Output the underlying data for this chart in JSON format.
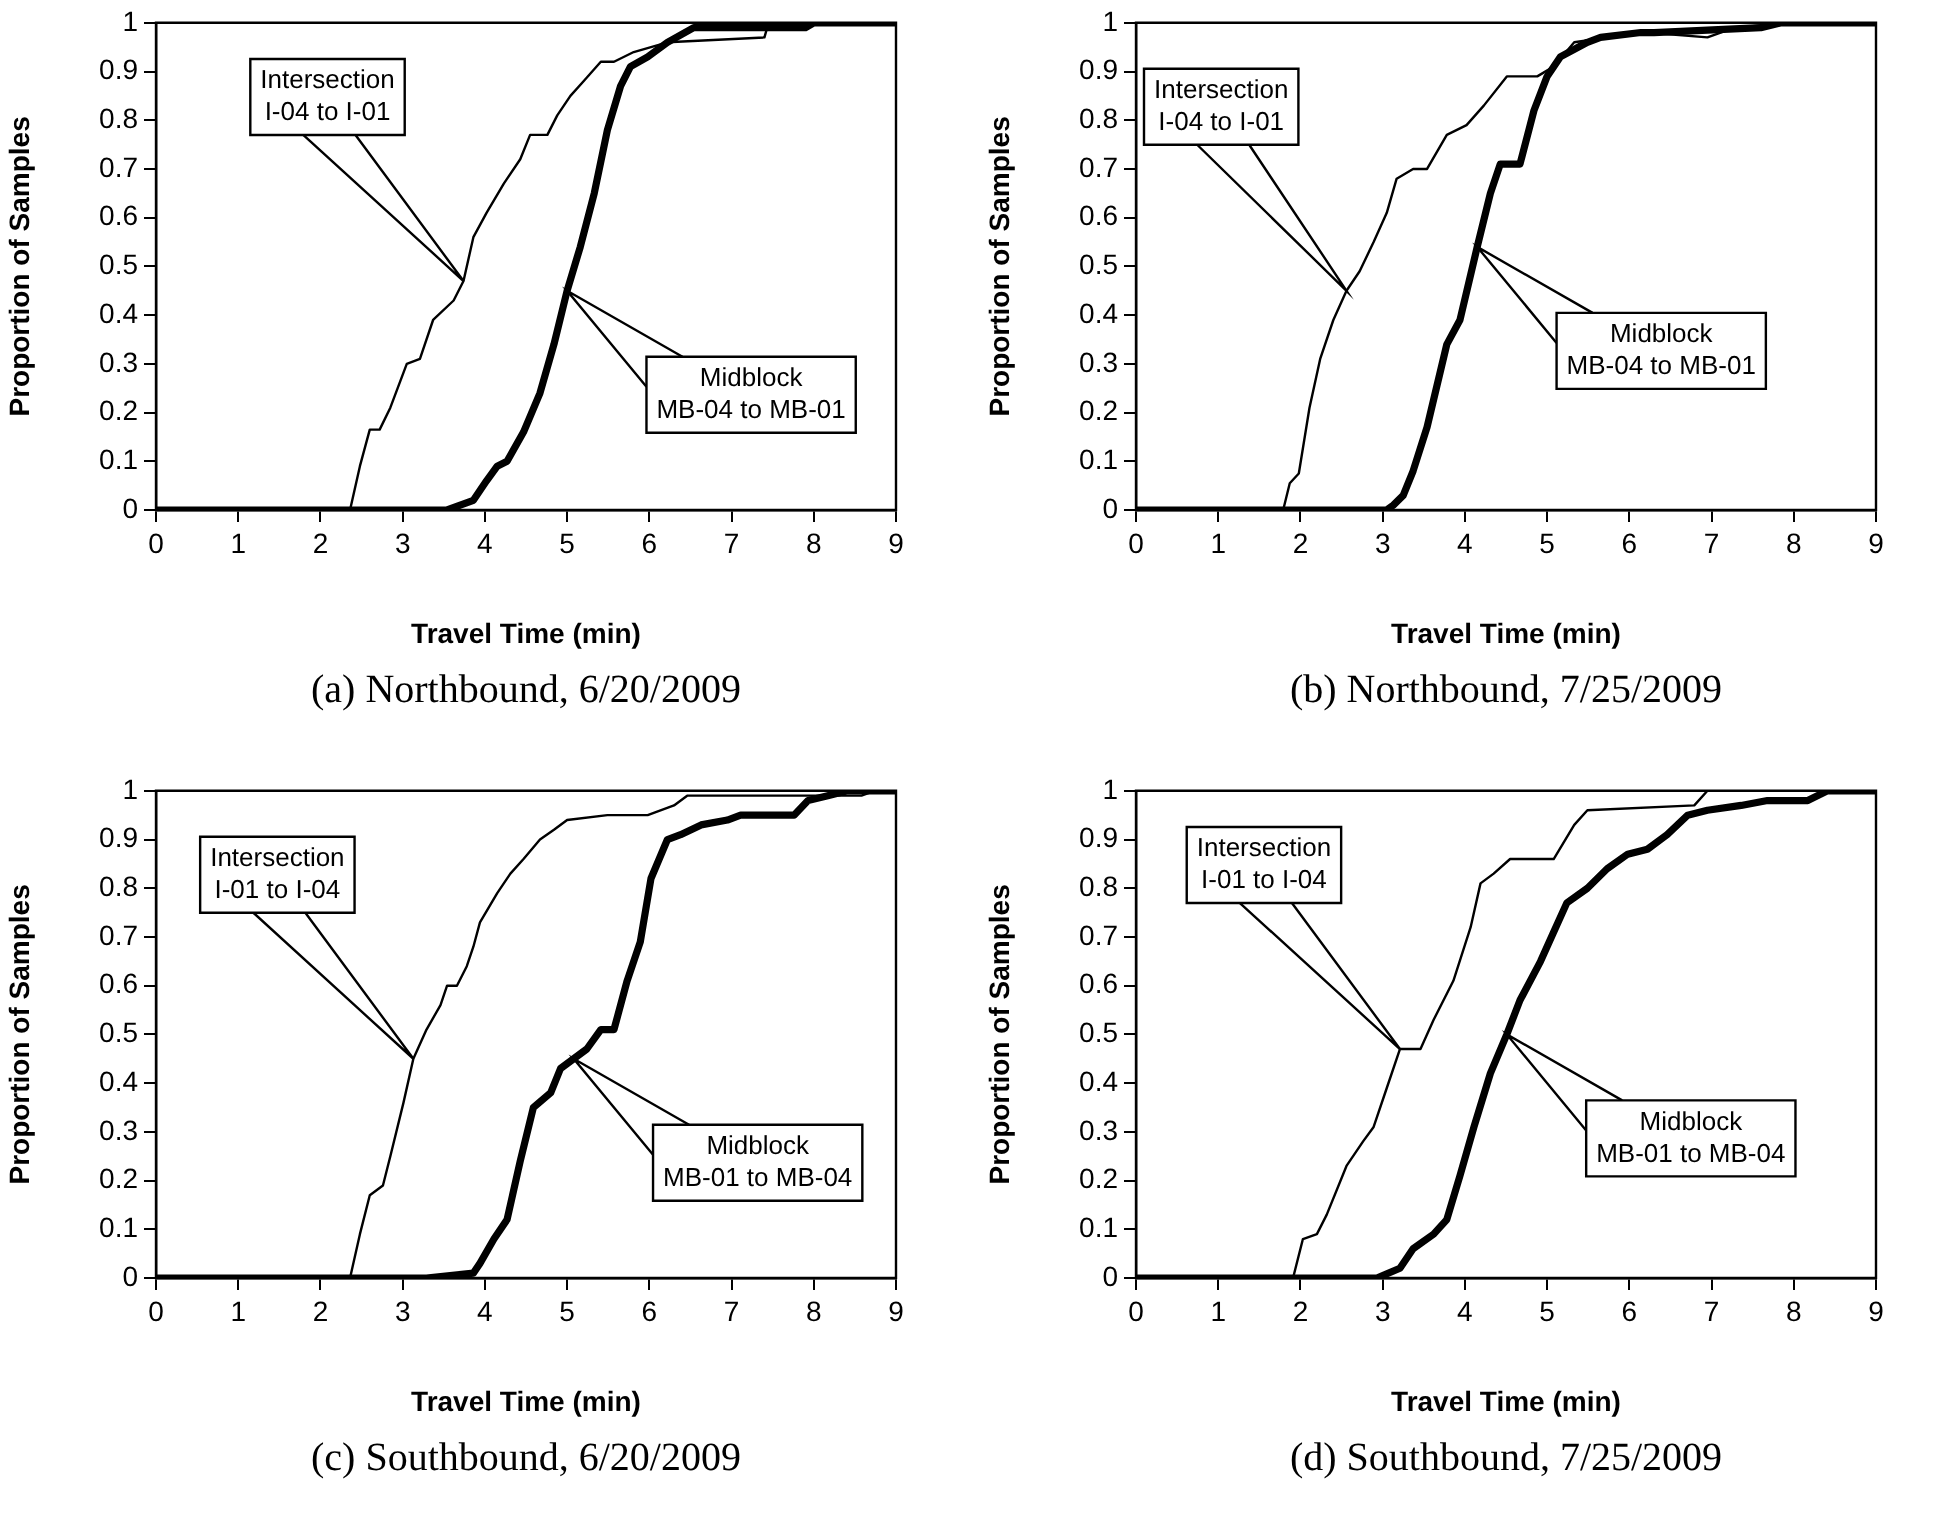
{
  "chart_data": [
    {
      "type": "line",
      "title": "(a) Northbound, 6/20/2009",
      "xlabel": "Travel Time (min)",
      "ylabel": "Proportion of Samples",
      "xlim": [
        0,
        9
      ],
      "xticks": [
        0,
        1,
        2,
        3,
        4,
        5,
        6,
        7,
        8,
        9
      ],
      "ylim": [
        0,
        1
      ],
      "yticks": [
        0,
        0.1,
        0.2,
        0.3,
        0.4,
        0.5,
        0.6,
        0.7,
        0.8,
        0.9,
        1
      ],
      "grid": false,
      "legend": false,
      "marker": "none",
      "line_style": "solid",
      "series": [
        {
          "color": "#000000",
          "x": [
            0,
            2.36,
            2.48,
            2.6,
            2.72,
            2.85,
            3.05,
            3.21,
            3.37,
            3.62,
            3.74,
            3.86,
            4.02,
            4.23,
            4.43,
            4.55,
            4.76,
            4.88,
            5.04,
            5.2,
            5.41,
            5.57,
            5.81,
            6.22,
            7.4,
            7.45,
            9
          ],
          "values": [
            0,
            0,
            0.09,
            0.165,
            0.165,
            0.21,
            0.3,
            0.31,
            0.39,
            0.43,
            0.47,
            0.56,
            0.61,
            0.67,
            0.72,
            0.77,
            0.77,
            0.81,
            0.85,
            0.88,
            0.92,
            0.92,
            0.94,
            0.96,
            0.97,
            1,
            1
          ]
        },
        {
          "color": "#000000",
          "x": [
            0,
            3.54,
            3.7,
            3.86,
            4.02,
            4.15,
            4.27,
            4.47,
            4.67,
            4.84,
            5,
            5.16,
            5.33,
            5.49,
            5.65,
            5.77,
            5.98,
            6.22,
            6.54,
            7.9,
            8,
            9
          ],
          "values": [
            0,
            0,
            0.01,
            0.02,
            0.06,
            0.09,
            0.1,
            0.16,
            0.24,
            0.34,
            0.45,
            0.54,
            0.65,
            0.78,
            0.87,
            0.91,
            0.93,
            0.96,
            0.99,
            0.99,
            1,
            1
          ]
        }
      ],
      "annotations": [
        "Intersection\nI-04 to I-01",
        "Midblock\nMB-04 to MB-01"
      ]
    },
    {
      "type": "line",
      "title": "(b) Northbound, 7/25/2009",
      "xlabel": "Travel Time (min)",
      "ylabel": "Proportion of Samples",
      "xlim": [
        0,
        9
      ],
      "xticks": [
        0,
        1,
        2,
        3,
        4,
        5,
        6,
        7,
        8,
        9
      ],
      "ylim": [
        0,
        1
      ],
      "yticks": [
        0,
        0.1,
        0.2,
        0.3,
        0.4,
        0.5,
        0.6,
        0.7,
        0.8,
        0.9,
        1
      ],
      "grid": false,
      "legend": false,
      "marker": "none",
      "line_style": "solid",
      "series": [
        {
          "color": "#000000",
          "x": [
            0,
            1.79,
            1.87,
            1.98,
            2.11,
            2.24,
            2.4,
            2.56,
            2.72,
            2.89,
            3.05,
            3.17,
            3.37,
            3.54,
            3.78,
            4.02,
            4.23,
            4.51,
            4.88,
            5.08,
            5.33,
            5.73,
            6.22,
            6.95,
            7.28,
            8,
            9
          ],
          "values": [
            0,
            0,
            0.055,
            0.075,
            0.21,
            0.31,
            0.39,
            0.45,
            0.49,
            0.55,
            0.61,
            0.68,
            0.7,
            0.7,
            0.77,
            0.79,
            0.83,
            0.89,
            0.89,
            0.91,
            0.96,
            0.97,
            0.98,
            0.97,
            0.99,
            1,
            1
          ]
        },
        {
          "color": "#000000",
          "x": [
            0,
            3.05,
            3.13,
            3.25,
            3.37,
            3.54,
            3.78,
            3.94,
            4.15,
            4.31,
            4.43,
            4.67,
            4.84,
            5,
            5.16,
            5.49,
            5.65,
            6.14,
            6.3,
            7.6,
            7.85,
            9
          ],
          "values": [
            0,
            0,
            0.01,
            0.03,
            0.08,
            0.17,
            0.34,
            0.39,
            0.54,
            0.65,
            0.71,
            0.71,
            0.82,
            0.89,
            0.93,
            0.96,
            0.97,
            0.98,
            0.98,
            0.99,
            1,
            1
          ]
        }
      ],
      "annotations": [
        "Intersection\nI-04 to I-01",
        "Midblock\nMB-04 to MB-01"
      ]
    },
    {
      "type": "line",
      "title": "(c) Southbound, 6/20/2009",
      "xlabel": "Travel Time (min)",
      "ylabel": "Proportion of Samples",
      "xlim": [
        0,
        9
      ],
      "xticks": [
        0,
        1,
        2,
        3,
        4,
        5,
        6,
        7,
        8,
        9
      ],
      "ylim": [
        0,
        1
      ],
      "yticks": [
        0,
        0.1,
        0.2,
        0.3,
        0.4,
        0.5,
        0.6,
        0.7,
        0.8,
        0.9,
        1
      ],
      "grid": false,
      "legend": false,
      "marker": "none",
      "line_style": "solid",
      "series": [
        {
          "color": "#000000",
          "x": [
            0,
            2.36,
            2.48,
            2.6,
            2.76,
            2.85,
            3.01,
            3.13,
            3.29,
            3.46,
            3.54,
            3.66,
            3.78,
            3.86,
            3.94,
            4.15,
            4.31,
            4.47,
            4.67,
            4.84,
            5,
            5.49,
            5.98,
            6.3,
            6.46,
            8.58,
            8.74,
            9
          ],
          "values": [
            0,
            0,
            0.09,
            0.17,
            0.19,
            0.25,
            0.36,
            0.45,
            0.51,
            0.56,
            0.6,
            0.6,
            0.64,
            0.68,
            0.73,
            0.79,
            0.83,
            0.86,
            0.9,
            0.92,
            0.94,
            0.95,
            0.95,
            0.97,
            0.99,
            0.99,
            1,
            1
          ]
        },
        {
          "color": "#000000",
          "x": [
            0,
            3.29,
            3.86,
            3.94,
            4.11,
            4.27,
            4.43,
            4.59,
            4.8,
            4.92,
            5.08,
            5.24,
            5.41,
            5.57,
            5.73,
            5.89,
            6.02,
            6.22,
            6.38,
            6.63,
            6.95,
            7.11,
            7.76,
            7.93,
            8.17,
            8.41,
            9
          ],
          "values": [
            0,
            0,
            0.01,
            0.03,
            0.08,
            0.12,
            0.24,
            0.35,
            0.38,
            0.43,
            0.45,
            0.47,
            0.51,
            0.51,
            0.61,
            0.69,
            0.82,
            0.9,
            0.91,
            0.93,
            0.94,
            0.95,
            0.95,
            0.98,
            0.99,
            1,
            1
          ]
        }
      ],
      "annotations": [
        "Intersection\nI-01 to I-04",
        "Midblock\nMB-01 to MB-04"
      ]
    },
    {
      "type": "line",
      "title": "(d) Southbound, 7/25/2009",
      "xlabel": "Travel Time (min)",
      "ylabel": "Proportion of Samples",
      "xlim": [
        0,
        9
      ],
      "xticks": [
        0,
        1,
        2,
        3,
        4,
        5,
        6,
        7,
        8,
        9
      ],
      "ylim": [
        0,
        1
      ],
      "yticks": [
        0,
        0.1,
        0.2,
        0.3,
        0.4,
        0.5,
        0.6,
        0.7,
        0.8,
        0.9,
        1
      ],
      "grid": false,
      "legend": false,
      "marker": "none",
      "line_style": "solid",
      "series": [
        {
          "color": "#000000",
          "x": [
            0,
            1.91,
            2.03,
            2.2,
            2.32,
            2.56,
            2.76,
            2.89,
            3.05,
            3.21,
            3.46,
            3.62,
            3.86,
            4.07,
            4.19,
            4.35,
            4.55,
            5.08,
            5.33,
            5.49,
            6.79,
            6.95,
            9
          ],
          "values": [
            0,
            0,
            0.08,
            0.09,
            0.13,
            0.23,
            0.28,
            0.31,
            0.39,
            0.47,
            0.47,
            0.53,
            0.61,
            0.72,
            0.81,
            0.83,
            0.86,
            0.86,
            0.93,
            0.96,
            0.97,
            1,
            1
          ]
        },
        {
          "color": "#000000",
          "x": [
            0,
            2.93,
            3.21,
            3.37,
            3.62,
            3.78,
            3.94,
            4.11,
            4.31,
            4.51,
            4.67,
            4.92,
            5.08,
            5.24,
            5.49,
            5.73,
            5.98,
            6.22,
            6.46,
            6.71,
            6.95,
            7.36,
            7.68,
            8.17,
            8.41,
            9
          ],
          "values": [
            0,
            0,
            0.02,
            0.06,
            0.09,
            0.12,
            0.21,
            0.31,
            0.42,
            0.5,
            0.57,
            0.65,
            0.71,
            0.77,
            0.8,
            0.84,
            0.87,
            0.88,
            0.91,
            0.95,
            0.96,
            0.97,
            0.98,
            0.98,
            1,
            1
          ]
        }
      ],
      "annotations": [
        "Intersection\nI-01 to I-04",
        "Midblock\nMB-01 to MB-04"
      ]
    }
  ]
}
